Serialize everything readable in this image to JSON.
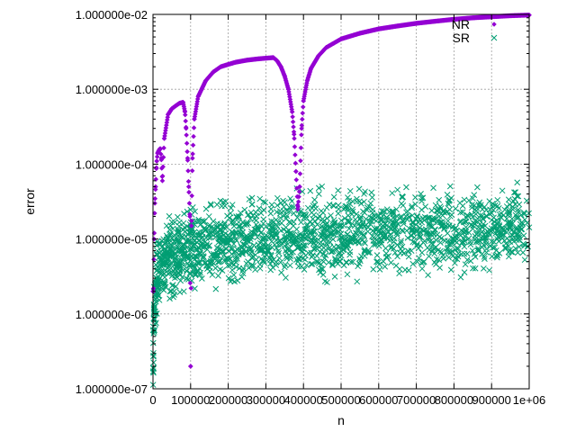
{
  "chart_data": {
    "type": "scatter",
    "title": "",
    "xlabel": "n",
    "ylabel": "error",
    "xlim": [
      0,
      1000000
    ],
    "ylim": [
      1e-07,
      0.01
    ],
    "yscale": "log",
    "grid": true,
    "legend_position": "top-right",
    "x_tick_labels": [
      "0",
      "100000",
      "200000",
      "300000",
      "400000",
      "500000",
      "600000",
      "700000",
      "800000",
      "900000",
      "1e+06"
    ],
    "y_tick_labels": [
      "1.000000e-07",
      "1.000000e-06",
      "1.000000e-05",
      "1.000000e-04",
      "1.000000e-03",
      "1.000000e-02"
    ],
    "series": [
      {
        "name": "NR",
        "marker": "diamond",
        "color": "#9400d3",
        "x": [
          1000,
          3000,
          5000,
          7000,
          9000,
          10000,
          12000,
          15000,
          18000,
          20000,
          22000,
          25000,
          30000,
          40000,
          50000,
          60000,
          70000,
          80000,
          85000,
          88000,
          92000,
          95000,
          98000,
          100000,
          102000,
          105000,
          110000,
          120000,
          140000,
          160000,
          180000,
          200000,
          220000,
          250000,
          280000,
          300000,
          320000,
          330000,
          340000,
          350000,
          360000,
          370000,
          375000,
          380000,
          385000,
          390000,
          395000,
          400000,
          410000,
          420000,
          440000,
          460000,
          500000,
          550000,
          600000,
          650000,
          700000,
          750000,
          800000,
          850000,
          900000,
          950000,
          1000000
        ],
        "y": [
          2e-06,
          1e-05,
          3e-05,
          5e-05,
          9e-05,
          0.00011,
          0.00014,
          0.00015,
          0.00016,
          0.00016,
          0.00012,
          6e-05,
          0.00022,
          0.00046,
          0.00055,
          0.0006,
          0.00065,
          0.00067,
          0.0005,
          0.0003,
          0.00012,
          5e-05,
          2e-05,
          2e-07,
          1.5e-05,
          0.00012,
          0.0004,
          0.0008,
          0.0013,
          0.0017,
          0.002,
          0.00215,
          0.0023,
          0.00245,
          0.00255,
          0.0026,
          0.00265,
          0.0024,
          0.002,
          0.0015,
          0.001,
          0.0005,
          0.00025,
          8e-05,
          2.5e-05,
          5e-05,
          0.0003,
          0.0007,
          0.0013,
          0.0019,
          0.0028,
          0.0036,
          0.0047,
          0.0056,
          0.0064,
          0.007,
          0.0076,
          0.0081,
          0.0086,
          0.009,
          0.0093,
          0.0096,
          0.0098
        ]
      },
      {
        "name": "SR",
        "marker": "x",
        "color": "#009e73",
        "x": [
          1000,
          2000,
          3000,
          5000,
          8000,
          10000,
          15000,
          20000,
          25000,
          30000,
          40000,
          50000,
          60000,
          80000,
          100000,
          120000,
          150000,
          180000,
          200000,
          250000,
          300000,
          350000,
          400000,
          450000,
          500000,
          550000,
          600000,
          650000,
          700000,
          750000,
          800000,
          850000,
          900000,
          950000,
          1000000
        ],
        "y": [
          3e-07,
          6e-07,
          1.2e-06,
          1.8e-06,
          2.4e-06,
          3e-06,
          3.6e-06,
          4.1e-06,
          4.5e-06,
          4.9e-06,
          5.5e-06,
          5.9e-06,
          6.3e-06,
          6.9e-06,
          7.3e-06,
          7.7e-06,
          8.2e-06,
          8.7e-06,
          9e-06,
          9.6e-06,
          1.02e-05,
          1.06e-05,
          1.1e-05,
          1.14e-05,
          1.18e-05,
          1.21e-05,
          1.24e-05,
          1.27e-05,
          1.3e-05,
          1.32e-05,
          1.35e-05,
          1.37e-05,
          1.39e-05,
          1.41e-05,
          1.43e-05
        ],
        "spread_note": ""
      }
    ]
  }
}
